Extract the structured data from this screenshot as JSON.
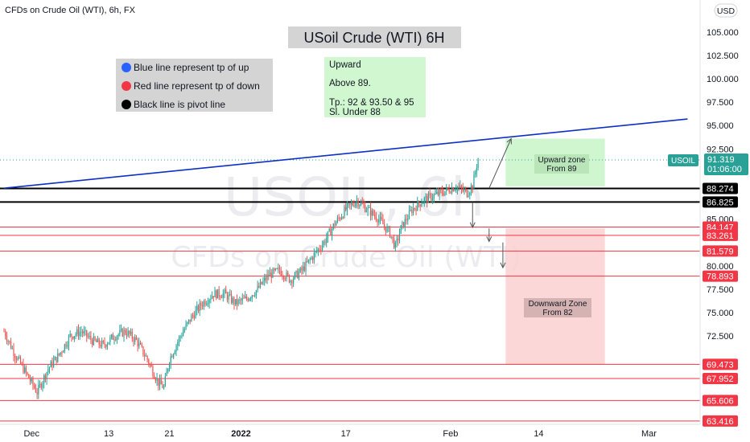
{
  "header": {
    "symbol_title": "CFDs on Crude Oil (WTI), 6h, FX",
    "currency_badge": "USD"
  },
  "watermark": {
    "symbol": "USOIL, 6h",
    "description": "CFDs on Crude Oil (WTI)"
  },
  "annotations": {
    "title": "USoil Crude (WTI) 6H",
    "legend": [
      {
        "text": "Blue line represent tp of up",
        "color": "#2962ff"
      },
      {
        "text": "Red line represent tp of down",
        "color": "#f23645"
      },
      {
        "text": "Black line is pivot line",
        "color": "#000000"
      }
    ],
    "upward_note": {
      "lines": [
        "Upward",
        "Above 89.",
        "Tp.: 92 & 93.50 & 95",
        "Sl. Under 88"
      ]
    },
    "upward_zone": {
      "line1": "Upward zone",
      "line2": "From 89"
    },
    "downward_zone": {
      "line1": "Downward Zone",
      "line2": "From 82"
    }
  },
  "current_price": {
    "symbol": "USOIL",
    "price": "91.319",
    "countdown": "01:06:00",
    "value": 91.319
  },
  "colors": {
    "up_candle": "#26a69a",
    "down_candle": "#ef5350",
    "trendline": "#0d2fc4",
    "support_red": "#f23645",
    "pivot_black": "#000000",
    "up_zone_fill": "#c8f5c8",
    "down_zone_fill": "#fbd0d0"
  },
  "chart_data": {
    "type": "candlestick",
    "title": "USoil Crude (WTI) 6H",
    "y_ticks": [
      "105.000",
      "102.500",
      "100.000",
      "97.500",
      "95.000",
      "92.500",
      "85.000",
      "80.000",
      "77.500",
      "75.000",
      "72.500"
    ],
    "y_tick_values": [
      105,
      102.5,
      100,
      97.5,
      95,
      92.5,
      85,
      80,
      77.5,
      75,
      72.5
    ],
    "x_ticks": [
      {
        "label": "Dec",
        "bar": 5
      },
      {
        "label": "13",
        "bar": 19
      },
      {
        "label": "21",
        "bar": 30
      },
      {
        "label": "2022",
        "bar": 43
      },
      {
        "label": "17",
        "bar": 62
      },
      {
        "label": "Feb",
        "bar": 81
      },
      {
        "label": "14",
        "bar": 97
      },
      {
        "label": "Mar",
        "bar": 117
      }
    ],
    "ylim": [
      63,
      110
    ],
    "black_pivot_lines": [
      {
        "label": "88.274",
        "value": 88.274
      },
      {
        "label": "86.825",
        "value": 86.825
      }
    ],
    "red_lines": [
      {
        "label": "84.147",
        "value": 84.147
      },
      {
        "label": "83.261",
        "value": 83.261
      },
      {
        "label": "81.579",
        "value": 81.579
      },
      {
        "label": "78.893",
        "value": 78.893
      },
      {
        "label": "69.473",
        "value": 69.473
      },
      {
        "label": "67.952",
        "value": 67.952
      },
      {
        "label": "65.606",
        "value": 65.606
      },
      {
        "label": "63.416",
        "value": 63.416
      }
    ],
    "trendline": {
      "start_bar": 0,
      "start_value": 88.3,
      "end_bar": 124,
      "end_value": 95.7
    },
    "upward_zone": {
      "bar_from": 91,
      "bar_to": 109,
      "value_from": 88.5,
      "value_to": 93.6
    },
    "downward_zone": {
      "bar_from": 91,
      "bar_to": 109,
      "value_from": 69.5,
      "value_to": 84.0
    },
    "close_path": [
      [
        0,
        73.0
      ],
      [
        2,
        70.5
      ],
      [
        4,
        68.5
      ],
      [
        6,
        66.5
      ],
      [
        8,
        69.0
      ],
      [
        10,
        70.5
      ],
      [
        12,
        72.5
      ],
      [
        14,
        73.0
      ],
      [
        16,
        72.0
      ],
      [
        18,
        71.5
      ],
      [
        20,
        72.5
      ],
      [
        22,
        73.0
      ],
      [
        24,
        72.0
      ],
      [
        26,
        70.0
      ],
      [
        28,
        67.5
      ],
      [
        29,
        67.0
      ],
      [
        30,
        70.0
      ],
      [
        32,
        72.5
      ],
      [
        34,
        74.5
      ],
      [
        36,
        76.0
      ],
      [
        38,
        77.0
      ],
      [
        40,
        77.0
      ],
      [
        42,
        76.0
      ],
      [
        44,
        76.5
      ],
      [
        46,
        77.5
      ],
      [
        48,
        79.0
      ],
      [
        50,
        79.5
      ],
      [
        52,
        78.5
      ],
      [
        54,
        79.5
      ],
      [
        56,
        81.0
      ],
      [
        58,
        82.5
      ],
      [
        60,
        84.5
      ],
      [
        62,
        86.0
      ],
      [
        64,
        87.0
      ],
      [
        66,
        86.0
      ],
      [
        68,
        85.0
      ],
      [
        70,
        83.5
      ],
      [
        71,
        82.0
      ],
      [
        72,
        84.0
      ],
      [
        74,
        86.0
      ],
      [
        76,
        87.0
      ],
      [
        78,
        87.5
      ],
      [
        80,
        88.0
      ],
      [
        82,
        88.5
      ],
      [
        84,
        87.8
      ],
      [
        85,
        88.6
      ],
      [
        86,
        91.5
      ]
    ],
    "current_price": 91.319
  }
}
